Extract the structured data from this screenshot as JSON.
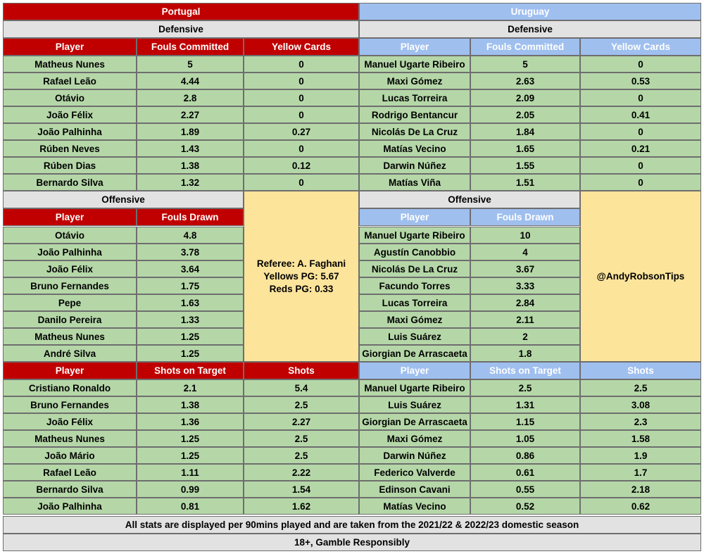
{
  "portugal": {
    "team_name": "Portugal",
    "defensive": {
      "title": "Defensive",
      "headers": [
        "Player",
        "Fouls Committed",
        "Yellow Cards"
      ],
      "rows": [
        [
          "Matheus Nunes",
          "5",
          "0"
        ],
        [
          "Rafael Leão",
          "4.44",
          "0"
        ],
        [
          "Otávio",
          "2.8",
          "0"
        ],
        [
          "João Félix",
          "2.27",
          "0"
        ],
        [
          "João Palhinha",
          "1.89",
          "0.27"
        ],
        [
          "Rúben Neves",
          "1.43",
          "0"
        ],
        [
          "Rúben Dias",
          "1.38",
          "0.12"
        ],
        [
          "Bernardo Silva",
          "1.32",
          "0"
        ]
      ]
    },
    "offensive": {
      "title": "Offensive",
      "headers": [
        "Player",
        "Fouls Drawn"
      ],
      "rows": [
        [
          "Otávio",
          "4.8"
        ],
        [
          "João Palhinha",
          "3.78"
        ],
        [
          "João Félix",
          "3.64"
        ],
        [
          "Bruno Fernandes",
          "1.75"
        ],
        [
          "Pepe",
          "1.63"
        ],
        [
          "Danilo Pereira",
          "1.33"
        ],
        [
          "Matheus Nunes",
          "1.25"
        ],
        [
          "André Silva",
          "1.25"
        ]
      ]
    },
    "shots": {
      "headers": [
        "Player",
        "Shots on Target",
        "Shots"
      ],
      "rows": [
        [
          "Cristiano Ronaldo",
          "2.1",
          "5.4"
        ],
        [
          "Bruno Fernandes",
          "1.38",
          "2.5"
        ],
        [
          "João Félix",
          "1.36",
          "2.27"
        ],
        [
          "Matheus Nunes",
          "1.25",
          "2.5"
        ],
        [
          "João Mário",
          "1.25",
          "2.5"
        ],
        [
          "Rafael Leão",
          "1.11",
          "2.22"
        ],
        [
          "Bernardo Silva",
          "0.99",
          "1.54"
        ],
        [
          "João Palhinha",
          "0.81",
          "1.62"
        ]
      ]
    }
  },
  "uruguay": {
    "team_name": "Uruguay",
    "defensive": {
      "title": "Defensive",
      "headers": [
        "Player",
        "Fouls Committed",
        "Yellow Cards"
      ],
      "rows": [
        [
          "Manuel Ugarte Ribeiro",
          "5",
          "0"
        ],
        [
          "Maxi Gómez",
          "2.63",
          "0.53"
        ],
        [
          "Lucas Torreira",
          "2.09",
          "0"
        ],
        [
          "Rodrigo Bentancur",
          "2.05",
          "0.41"
        ],
        [
          "Nicolás De La Cruz",
          "1.84",
          "0"
        ],
        [
          "Matías Vecino",
          "1.65",
          "0.21"
        ],
        [
          "Darwin Núñez",
          "1.55",
          "0"
        ],
        [
          "Matías Viña",
          "1.51",
          "0"
        ]
      ]
    },
    "offensive": {
      "title": "Offensive",
      "headers": [
        "Player",
        "Fouls Drawn"
      ],
      "rows": [
        [
          "Manuel Ugarte Ribeiro",
          "10"
        ],
        [
          "Agustín Canobbio",
          "4"
        ],
        [
          "Nicolás De La Cruz",
          "3.67"
        ],
        [
          "Facundo Torres",
          "3.33"
        ],
        [
          "Lucas Torreira",
          "2.84"
        ],
        [
          "Maxi Gómez",
          "2.11"
        ],
        [
          "Luis Suárez",
          "2"
        ],
        [
          "Giorgian De Arrascaeta",
          "1.8"
        ]
      ]
    },
    "shots": {
      "headers": [
        "Player",
        "Shots on Target",
        "Shots"
      ],
      "rows": [
        [
          "Manuel Ugarte Ribeiro",
          "2.5",
          "2.5"
        ],
        [
          "Luis Suárez",
          "1.31",
          "3.08"
        ],
        [
          "Giorgian De Arrascaeta",
          "1.15",
          "2.3"
        ],
        [
          "Maxi Gómez",
          "1.05",
          "1.58"
        ],
        [
          "Darwin Núñez",
          "0.86",
          "1.9"
        ],
        [
          "Federico Valverde",
          "0.61",
          "1.7"
        ],
        [
          "Edinson Cavani",
          "0.55",
          "2.18"
        ],
        [
          "Matías Vecino",
          "0.52",
          "0.62"
        ]
      ]
    }
  },
  "referee": {
    "line1": "Referee: A. Faghani",
    "line2": "Yellows PG: 5.67",
    "line3": "Reds PG: 0.33"
  },
  "handle": "@AndyRobsonTips",
  "footer": {
    "note": "All stats are displayed per 90mins played and are taken from the 2021/22 & 2022/23 domestic season",
    "disclaimer": "18+, Gamble Responsibly"
  },
  "colors": {
    "portugal_header": "#c00000",
    "uruguay_header": "#9fbfef",
    "row_fill": "#b5d7a8",
    "info_fill": "#fde49b",
    "section_fill": "#e2e2e2"
  }
}
